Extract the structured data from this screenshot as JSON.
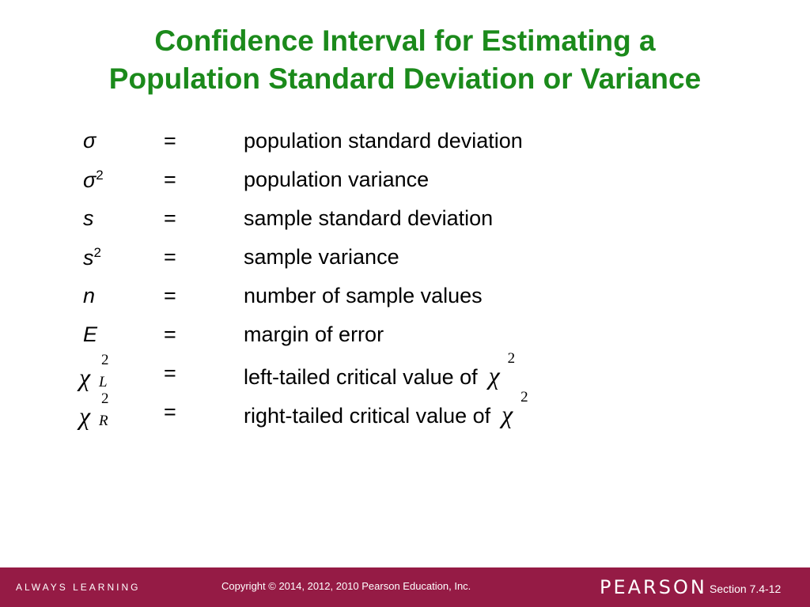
{
  "title": {
    "lines": [
      "Confidence Interval for Estimating a",
      "Population Standard Deviation or Variance"
    ]
  },
  "rows": [
    {
      "symbol": "σ",
      "relation": "=",
      "definition": "population standard deviation"
    },
    {
      "symbol": "σ",
      "sup": "2",
      "relation": "=",
      "definition": "population variance"
    },
    {
      "symbol": "s",
      "relation": "=",
      "definition": "sample standard deviation"
    },
    {
      "symbol": "s",
      "sup": "2",
      "relation": "=",
      "definition": "sample variance"
    },
    {
      "symbol": "n",
      "relation": "=",
      "definition": "number of sample values"
    },
    {
      "symbol": "E",
      "relation": "=",
      "definition": "margin of error"
    },
    {
      "symbol": "χ",
      "sup": "2",
      "sub": "L",
      "math": true,
      "relation": "=",
      "definition": "left-tailed critical value of",
      "def_symbol": "χ",
      "def_sup": "2"
    },
    {
      "symbol": "χ",
      "sup": "2",
      "sub": "R",
      "math": true,
      "relation": "=",
      "definition": "right-tailed critical value of",
      "def_symbol": "χ",
      "def_sup": "2"
    }
  ],
  "footer": {
    "tagline": "ALWAYS LEARNING",
    "copyright": "Copyright © 2014, 2012, 2010 Pearson Education, Inc.",
    "brand": "PEARSON",
    "section": "Section 7.4-12"
  }
}
